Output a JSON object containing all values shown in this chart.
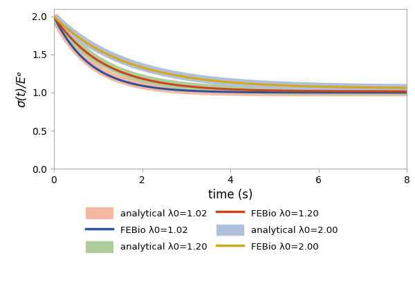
{
  "title": "",
  "xlabel": "time (s)",
  "ylabel": "σ(t)/Eᵉ",
  "xlim": [
    0,
    8
  ],
  "ylim": [
    0.0,
    2.1
  ],
  "yticks": [
    0.0,
    0.5,
    1.0,
    1.5,
    2.0
  ],
  "xticks": [
    0,
    2,
    4,
    6,
    8
  ],
  "t_max": 8.0,
  "n_points": 500,
  "analytical_colors": {
    "1.02": "#F5B8A0",
    "1.20": "#B0CC9A",
    "2.00": "#B0C0DC"
  },
  "febio_colors": {
    "1.02": "#3050A0",
    "1.20": "#CC4418",
    "2.00": "#D8A810"
  },
  "analytical_lw": 8,
  "febio_lw": 2.2,
  "legend_fontsize": 9.5,
  "axis_fontsize": 12,
  "tick_fontsize": 10
}
